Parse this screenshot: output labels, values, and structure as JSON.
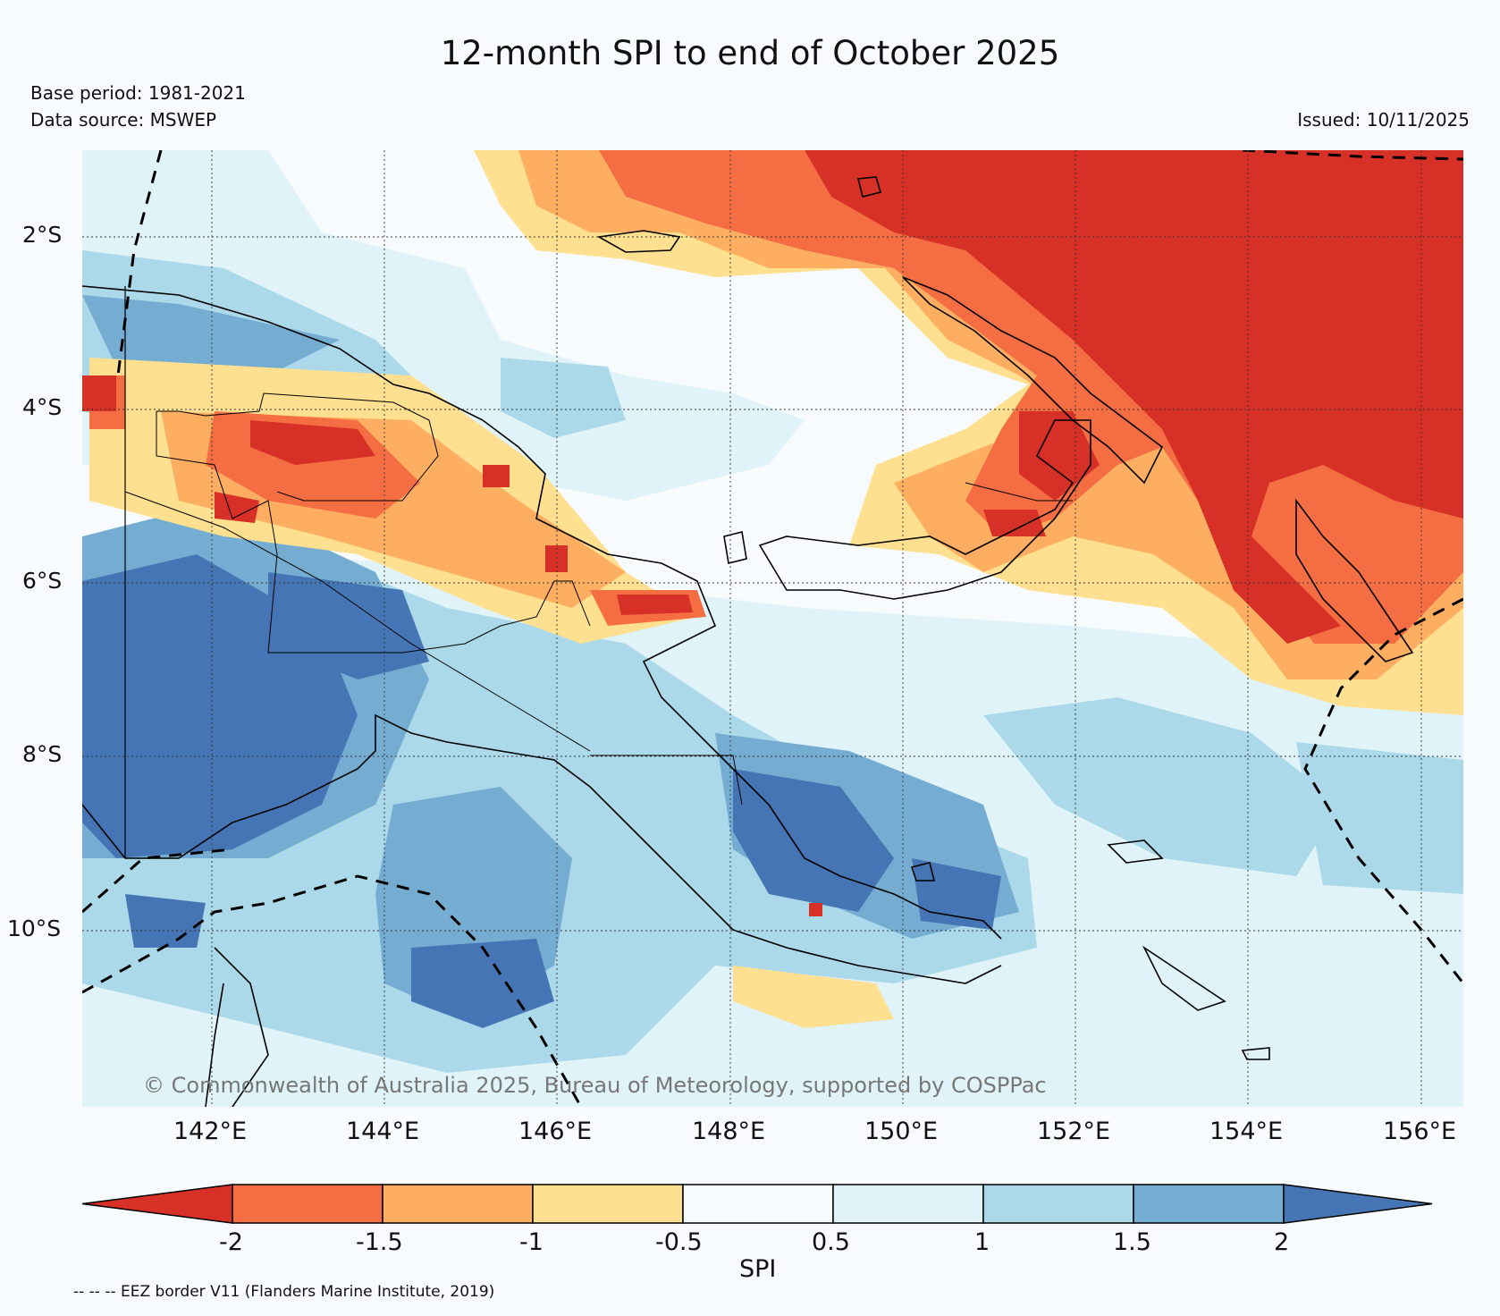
{
  "title": "12-month SPI to end of October 2025",
  "base_period": "Base period: 1981-2021",
  "data_source": "Data source: MSWEP",
  "issued": "Issued: 10/11/2025",
  "copyright": "© Commonwealth of Australia 2025, Bureau of Meteorology, supported by COSPPac",
  "footnote": "-- -- -- EEZ border V11 (Flanders Marine Institute, 2019)",
  "axes": {
    "lat_labels": [
      "2°S",
      "4°S",
      "6°S",
      "8°S",
      "10°S"
    ],
    "lon_labels": [
      "142°E",
      "144°E",
      "146°E",
      "148°E",
      "150°E",
      "152°E",
      "154°E",
      "156°E"
    ]
  },
  "colorbar": {
    "title": "SPI",
    "tick_labels": [
      "-2",
      "-1.5",
      "-1",
      "-0.5",
      "0.5",
      "1",
      "1.5",
      "2"
    ],
    "colors": [
      "#d73027",
      "#f46d43",
      "#fdae61",
      "#fee090",
      "#f7fbfd",
      "#e0f3f8",
      "#abd9e9",
      "#74add1",
      "#4575b4"
    ]
  },
  "colors": {
    "background": "#f7fbfd",
    "very_dry": "#d73027",
    "very_wet": "#4575b4"
  }
}
